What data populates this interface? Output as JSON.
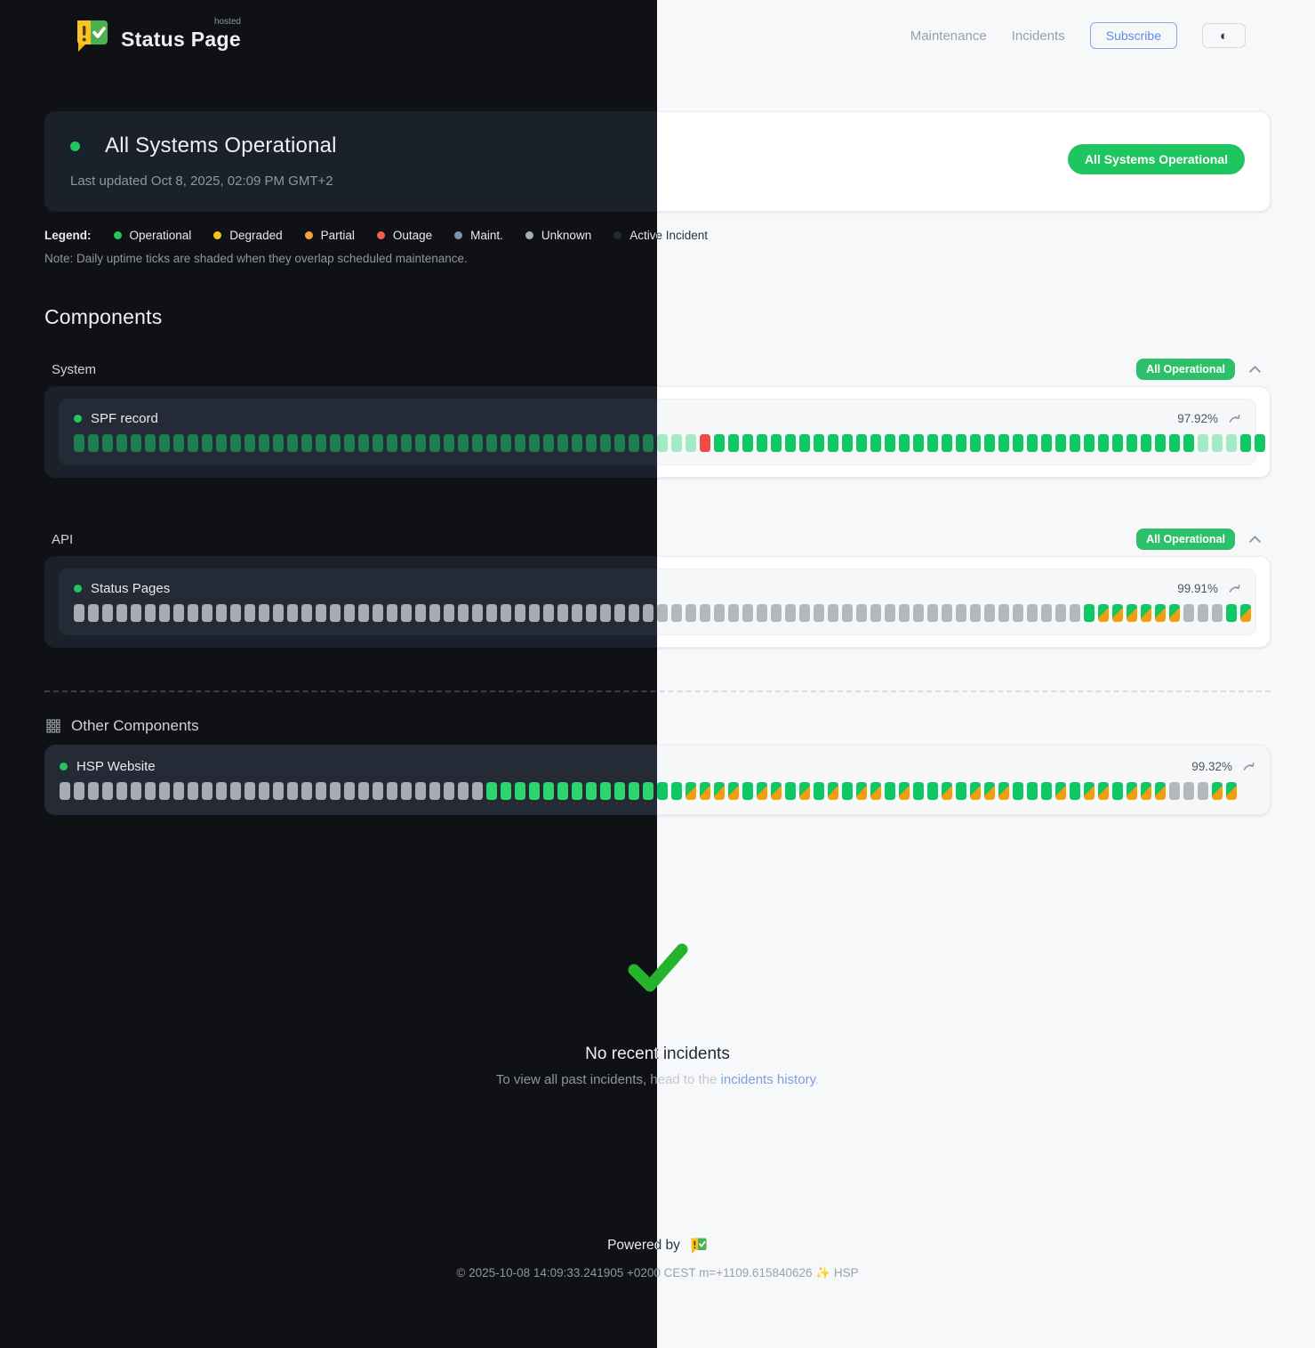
{
  "header": {
    "brand": {
      "name": "Status Page",
      "superscript": "hosted"
    },
    "nav": [
      {
        "label": "Maintenance"
      },
      {
        "label": "Incidents"
      }
    ],
    "subscribe_label": "Subscribe",
    "theme_icon": "◐"
  },
  "banner": {
    "title": "All Systems Operational",
    "last_updated": "Last updated Oct 8, 2025, 02:09 PM GMT+2",
    "badge": "All Systems Operational",
    "status_color": "#1fc55e"
  },
  "legend": {
    "label": "Legend:",
    "items": [
      {
        "label": "Operational",
        "color": "#22c55e"
      },
      {
        "label": "Degraded",
        "color": "#f5c518"
      },
      {
        "label": "Partial",
        "color": "#f5a13d"
      },
      {
        "label": "Outage",
        "color": "#f25c52"
      },
      {
        "label": "Maint.",
        "color": "#7e95a8"
      },
      {
        "label": "Unknown",
        "color": "#a8adb5"
      },
      {
        "label": "Active Incident",
        "color": "#222834"
      }
    ],
    "note": "Note: Daily uptime ticks are shaded when they overlap scheduled maintenance."
  },
  "components": {
    "heading": "Components",
    "tick_legend": {
      "g": "operational",
      "G": "operational",
      "f": "operational-shaded-maintenance",
      "r": "outage",
      "u": "unknown",
      "m": "operational-with-maintenance"
    },
    "groups": [
      {
        "name": "System",
        "badge": "All Operational",
        "items": [
          {
            "name": "SPF record",
            "uptime": "97.92%",
            "ticks": "gggggggggggggggggggggggggggggggggggggggggfffrggggggggggggggggggggggggggggggggggfffgg"
          }
        ]
      },
      {
        "name": "API",
        "badge": "All Operational",
        "items": [
          {
            "name": "Status Pages",
            "uptime": "99.91%",
            "ticks": "uuuuuuuuuuuuuuuuuuuuuuuuuuuuuuuuuuuuuuuuuuuuuuuuuuuuuuuuuuuuuuuuuuuuuuugmmmmmmuuugm"
          }
        ]
      }
    ],
    "other": {
      "heading": "Other Components",
      "items": [
        {
          "name": "HSP Website",
          "uptime": "99.32%",
          "ticks": "uuuuuuuuuuuuuuuuuuuuuuuuuuuuuuGGGGGGGGGGGGGGmmmmGmmGmGmGmmGmGGmGmmmGGGmGmmGmmmuuumm"
        }
      ]
    }
  },
  "incidents": {
    "title": "No recent incidents",
    "sub_prefix": "To view all past incidents, head to the ",
    "link_label": "incidents history",
    "sub_suffix": "."
  },
  "footer": {
    "powered_by": "Powered by",
    "copyright": "© 2025-10-08 14:09:33.241905 +0200 CEST m=+1109.615840626 ✨ HSP"
  }
}
